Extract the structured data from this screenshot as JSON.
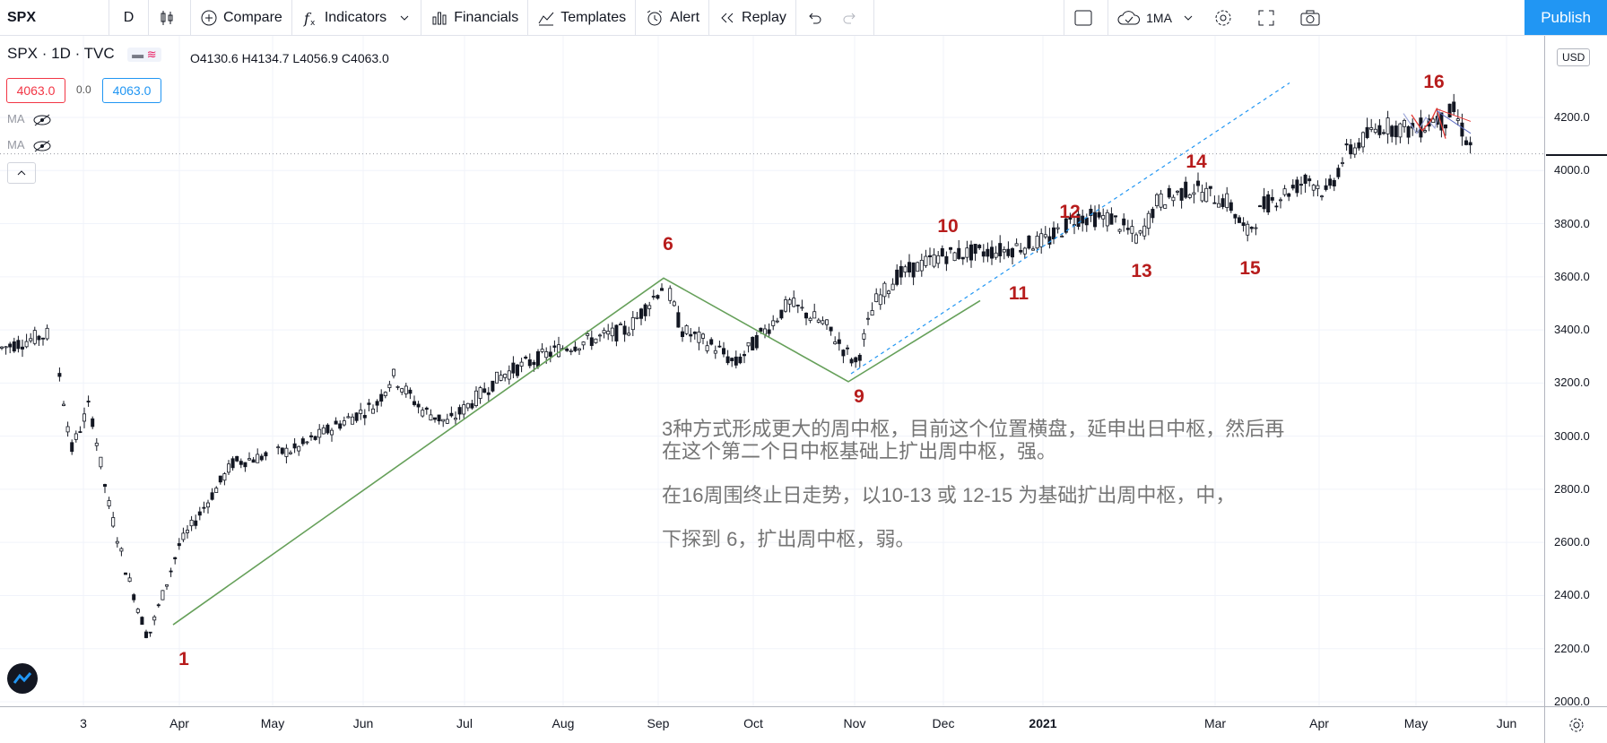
{
  "toolbar": {
    "symbol": "SPX",
    "interval": "D",
    "compare": "Compare",
    "indicators": "Indicators",
    "financials": "Financials",
    "templates": "Templates",
    "alert": "Alert",
    "replay": "Replay",
    "timeframe": "1MA",
    "publish": "Publish"
  },
  "legend": {
    "title": "SPX · 1D · TVC",
    "ohlc": "O4130.6  H4134.7  L4056.9  C4063.0",
    "bid": "4063.0",
    "change": "0.0",
    "ask": "4063.0",
    "ma1": "MA",
    "ma2": "MA"
  },
  "price_axis": {
    "currency": "USD",
    "labels": [
      "4200.0",
      "4000.0",
      "3800.0",
      "3600.0",
      "3400.0",
      "3200.0",
      "3000.0",
      "2800.0",
      "2600.0",
      "2400.0",
      "2200.0",
      "2000.0"
    ]
  },
  "time_axis": {
    "labels": [
      "3",
      "Apr",
      "May",
      "Jun",
      "Jul",
      "Aug",
      "Sep",
      "Oct",
      "Nov",
      "Dec",
      "2021",
      "Mar",
      "Apr",
      "May",
      "Jun"
    ]
  },
  "waves": [
    "1",
    "6",
    "9",
    "10",
    "11",
    "12",
    "13",
    "14",
    "15",
    "16"
  ],
  "notes": {
    "line1": "3种方式形成更大的周中枢，目前这个位置横盘，延申出日中枢，然后再",
    "line2": "在这个第二个日中枢基础上扩出周中枢，强。",
    "line3": "在16周围终止日走势，以10-13 或 12-15 为基础扩出周中枢，中，",
    "line4": "下探到 6，扩出周中枢，弱。"
  },
  "colors": {
    "up": "#ffffff",
    "down": "#131722",
    "wave_label": "#b71c1c",
    "trendline": "#66a05a",
    "dashed_line": "#2196f3",
    "note": "#757575",
    "accent": "#2196f3"
  },
  "chart_data": {
    "type": "candlestick",
    "title": "SPX · 1D · TVC",
    "ylabel": "USD",
    "ylim": [
      2000,
      4300
    ],
    "x": [
      "2020-03-03",
      "2020-03-23",
      "2020-06-08",
      "2020-09-02",
      "2020-10-30",
      "2020-12-04",
      "2021-01-08",
      "2021-02-12",
      "2021-03-04",
      "2021-04-16",
      "2021-05-07",
      "2021-05-12"
    ],
    "close": [
      3130,
      2237,
      3232,
      3580,
      3270,
      3700,
      3824,
      3934,
      3768,
      4185,
      4232,
      4063
    ],
    "wave_points": [
      {
        "label": "1",
        "x": "2020-03-23",
        "y": 2237
      },
      {
        "label": "6",
        "x": "2020-09-02",
        "y": 3588
      },
      {
        "label": "9",
        "x": "2020-10-30",
        "y": 3270
      },
      {
        "label": "10",
        "x": "2020-12-04",
        "y": 3700
      },
      {
        "label": "11",
        "x": "2020-12-21",
        "y": 3640
      },
      {
        "label": "12",
        "x": "2021-01-08",
        "y": 3824
      },
      {
        "label": "13",
        "x": "2021-01-29",
        "y": 3714
      },
      {
        "label": "14",
        "x": "2021-02-12",
        "y": 3934
      },
      {
        "label": "15",
        "x": "2021-03-04",
        "y": 3723
      },
      {
        "label": "16",
        "x": "2021-05-07",
        "y": 4238
      }
    ]
  }
}
